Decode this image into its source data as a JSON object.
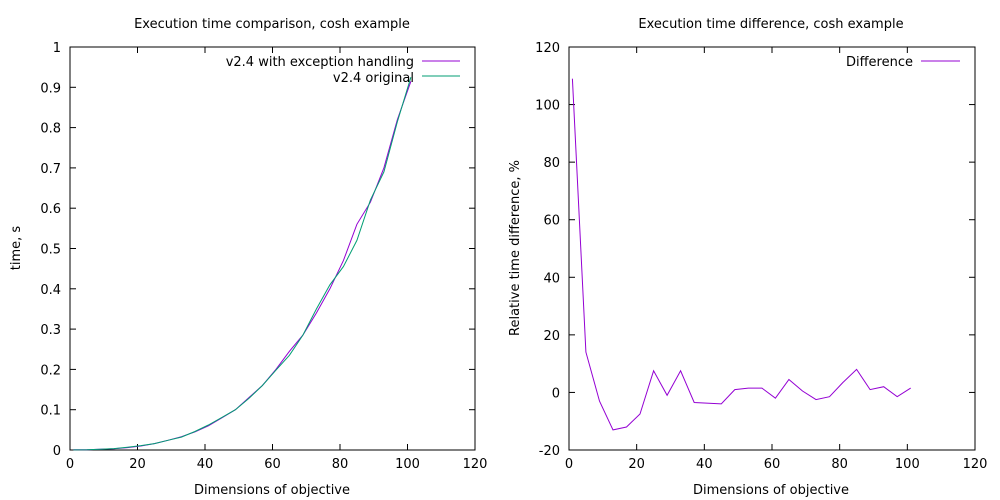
{
  "colors": {
    "purple": "#9400d3",
    "green": "#009e73",
    "axis": "#000000"
  },
  "chart_data": [
    {
      "type": "line",
      "title": "Execution time comparison, cosh example",
      "xlabel": "Dimensions of objective",
      "ylabel": "time, s",
      "xlim": [
        0,
        120
      ],
      "ylim": [
        0,
        1
      ],
      "xticks": [
        0,
        20,
        40,
        60,
        80,
        100,
        120
      ],
      "yticks": [
        0,
        0.1,
        0.2,
        0.3,
        0.4,
        0.5,
        0.6,
        0.7,
        0.8,
        0.9,
        1
      ],
      "grid": false,
      "legend": "top-right",
      "series": [
        {
          "name": "v2.4 with exception handling",
          "color": "#9400d3",
          "x": [
            1,
            5,
            9,
            13,
            17,
            21,
            25,
            29,
            33,
            37,
            41,
            45,
            49,
            53,
            57,
            61,
            65,
            69,
            73,
            77,
            81,
            85,
            89,
            93,
            97,
            101
          ],
          "y": [
            0.0004,
            0.0008,
            0.002,
            0.003,
            0.006,
            0.01,
            0.016,
            0.024,
            0.033,
            0.045,
            0.06,
            0.08,
            0.1,
            0.13,
            0.16,
            0.2,
            0.245,
            0.285,
            0.34,
            0.4,
            0.47,
            0.56,
            0.615,
            0.7,
            0.82,
            0.915
          ]
        },
        {
          "name": "v2.4 original",
          "color": "#009e73",
          "x": [
            1,
            5,
            9,
            13,
            17,
            21,
            25,
            29,
            33,
            37,
            41,
            45,
            49,
            53,
            57,
            61,
            65,
            69,
            73,
            77,
            81,
            85,
            89,
            93,
            97,
            101
          ],
          "y": [
            0.0002,
            0.0007,
            0.002,
            0.0035,
            0.007,
            0.011,
            0.016,
            0.024,
            0.032,
            0.046,
            0.062,
            0.081,
            0.1,
            0.128,
            0.16,
            0.198,
            0.235,
            0.285,
            0.35,
            0.41,
            0.455,
            0.52,
            0.62,
            0.69,
            0.815,
            0.925
          ]
        }
      ]
    },
    {
      "type": "line",
      "title": "Execution time difference, cosh example",
      "xlabel": "Dimensions of objective",
      "ylabel": "Relative time difference, %",
      "xlim": [
        0,
        120
      ],
      "ylim": [
        -20,
        120
      ],
      "xticks": [
        0,
        20,
        40,
        60,
        80,
        100,
        120
      ],
      "yticks": [
        -20,
        0,
        20,
        40,
        60,
        80,
        100,
        120
      ],
      "grid": false,
      "legend": "top-right",
      "series": [
        {
          "name": "Difference",
          "color": "#9400d3",
          "x": [
            1,
            5,
            9,
            13,
            17,
            21,
            25,
            29,
            33,
            37,
            45,
            49,
            53,
            57,
            61,
            65,
            69,
            73,
            77,
            81,
            85,
            89,
            93,
            97,
            101
          ],
          "y": [
            109,
            14,
            -3,
            -13,
            -12,
            -7.5,
            7.5,
            -1,
            7.5,
            -3.5,
            -4,
            1,
            1.5,
            1.5,
            -2,
            4.5,
            0.5,
            -2.5,
            -1.5,
            3.5,
            8,
            1,
            2,
            -1.5,
            1.5
          ]
        }
      ]
    }
  ]
}
